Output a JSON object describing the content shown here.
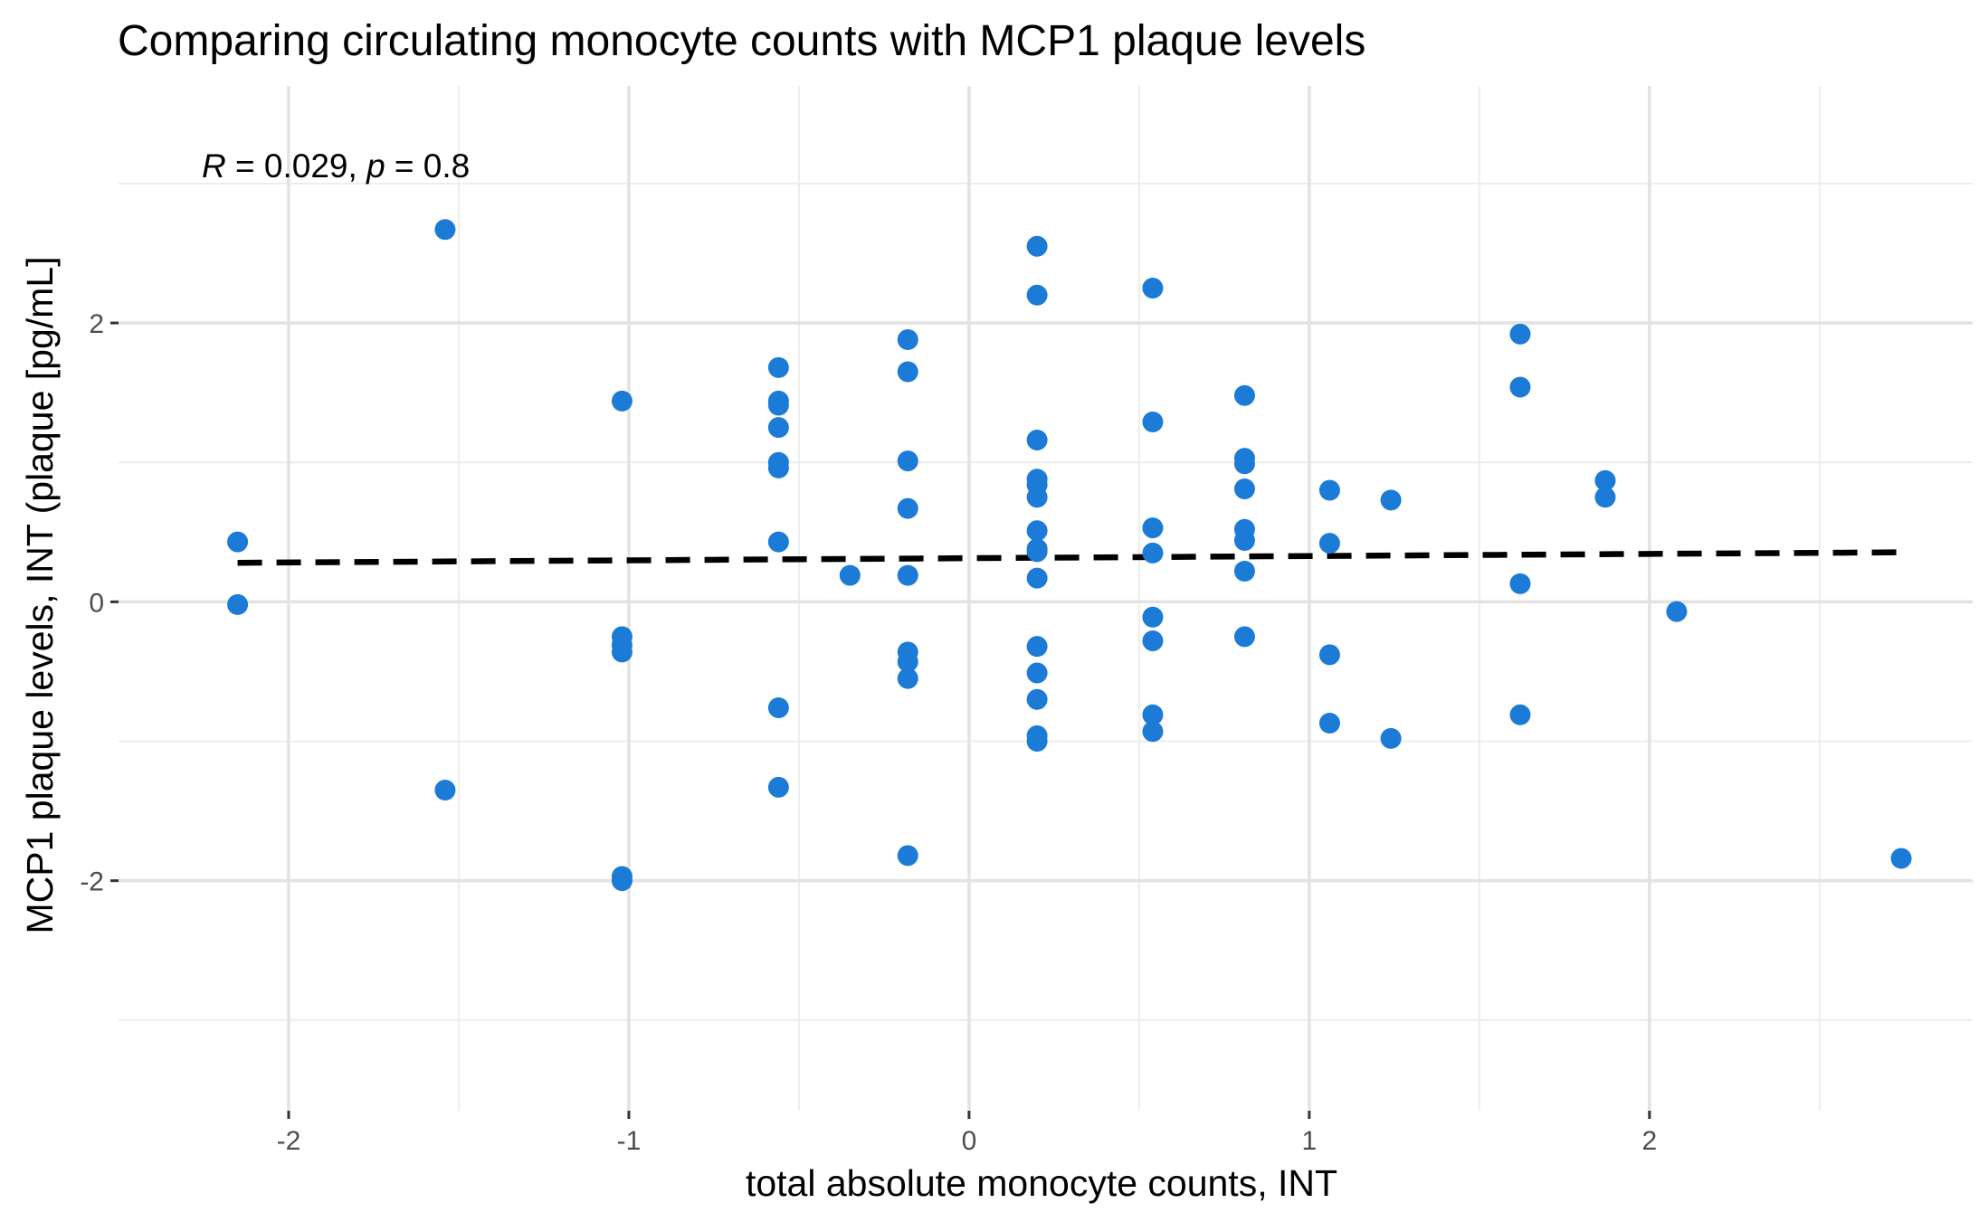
{
  "chart_data": {
    "type": "scatter",
    "title": "Comparing circulating monocyte counts with MCP1 plaque levels",
    "xlabel": "total absolute monocyte counts, INT",
    "ylabel": "MCP1 plaque levels, INT (plaque [pg/mL]",
    "xlim": [
      -2.5,
      2.95
    ],
    "ylim": [
      -3.65,
      3.7
    ],
    "x_ticks": [
      -2,
      -1,
      0,
      1,
      2
    ],
    "x_tick_labels": [
      "-2",
      "-1",
      "0",
      "1",
      "2"
    ],
    "y_ticks": [
      -2,
      0,
      2
    ],
    "y_tick_labels": [
      "-2",
      "0",
      "2"
    ],
    "x_minor_grid": [
      -1.5,
      -0.5,
      0.5,
      1.5,
      2.5
    ],
    "y_minor_grid": [
      -3,
      -1,
      1,
      3
    ],
    "grid": true,
    "point_color": "#1b7bd6",
    "annotation": {
      "r_symbol": "R",
      "r_value": " = 0.029, ",
      "p_symbol": "p",
      "p_value": " = 0.8"
    },
    "trend_line": {
      "x": [
        -2.15,
        2.74
      ],
      "y": [
        0.28,
        0.355
      ],
      "style": "dashed",
      "color": "#000000"
    },
    "points": [
      {
        "x": -2.15,
        "y": 0.43
      },
      {
        "x": -2.15,
        "y": -0.02
      },
      {
        "x": -1.54,
        "y": 2.67
      },
      {
        "x": -1.54,
        "y": -1.35
      },
      {
        "x": -1.02,
        "y": 1.44
      },
      {
        "x": -1.02,
        "y": -0.25
      },
      {
        "x": -1.02,
        "y": -0.31
      },
      {
        "x": -1.02,
        "y": -0.36
      },
      {
        "x": -1.02,
        "y": -1.97
      },
      {
        "x": -1.02,
        "y": -2.0
      },
      {
        "x": -0.56,
        "y": 1.68
      },
      {
        "x": -0.56,
        "y": 1.44
      },
      {
        "x": -0.56,
        "y": 1.41
      },
      {
        "x": -0.56,
        "y": 1.25
      },
      {
        "x": -0.56,
        "y": 1.0
      },
      {
        "x": -0.56,
        "y": 0.96
      },
      {
        "x": -0.56,
        "y": 0.43
      },
      {
        "x": -0.56,
        "y": -0.76
      },
      {
        "x": -0.56,
        "y": -1.33
      },
      {
        "x": -0.35,
        "y": 0.19
      },
      {
        "x": -0.18,
        "y": 1.88
      },
      {
        "x": -0.18,
        "y": 1.65
      },
      {
        "x": -0.18,
        "y": 1.01
      },
      {
        "x": -0.18,
        "y": 0.67
      },
      {
        "x": -0.18,
        "y": 0.19
      },
      {
        "x": -0.18,
        "y": -0.36
      },
      {
        "x": -0.18,
        "y": -0.43
      },
      {
        "x": -0.18,
        "y": -0.55
      },
      {
        "x": -0.18,
        "y": -1.82
      },
      {
        "x": 0.2,
        "y": 2.55
      },
      {
        "x": 0.2,
        "y": 2.2
      },
      {
        "x": 0.2,
        "y": 1.16
      },
      {
        "x": 0.2,
        "y": 0.88
      },
      {
        "x": 0.2,
        "y": 0.84
      },
      {
        "x": 0.2,
        "y": 0.75
      },
      {
        "x": 0.2,
        "y": 0.51
      },
      {
        "x": 0.2,
        "y": 0.38
      },
      {
        "x": 0.2,
        "y": 0.36
      },
      {
        "x": 0.2,
        "y": 0.17
      },
      {
        "x": 0.2,
        "y": -0.32
      },
      {
        "x": 0.2,
        "y": -0.51
      },
      {
        "x": 0.2,
        "y": -0.7
      },
      {
        "x": 0.2,
        "y": -0.96
      },
      {
        "x": 0.2,
        "y": -1.0
      },
      {
        "x": 0.54,
        "y": 2.25
      },
      {
        "x": 0.54,
        "y": 1.29
      },
      {
        "x": 0.54,
        "y": 0.53
      },
      {
        "x": 0.54,
        "y": 0.35
      },
      {
        "x": 0.54,
        "y": -0.11
      },
      {
        "x": 0.54,
        "y": -0.28
      },
      {
        "x": 0.54,
        "y": -0.81
      },
      {
        "x": 0.54,
        "y": -0.93
      },
      {
        "x": 0.81,
        "y": 1.48
      },
      {
        "x": 0.81,
        "y": 1.03
      },
      {
        "x": 0.81,
        "y": 0.99
      },
      {
        "x": 0.81,
        "y": 0.81
      },
      {
        "x": 0.81,
        "y": 0.52
      },
      {
        "x": 0.81,
        "y": 0.44
      },
      {
        "x": 0.81,
        "y": 0.22
      },
      {
        "x": 0.81,
        "y": -0.25
      },
      {
        "x": 1.06,
        "y": 0.8
      },
      {
        "x": 1.06,
        "y": 0.42
      },
      {
        "x": 1.06,
        "y": -0.38
      },
      {
        "x": 1.06,
        "y": -0.87
      },
      {
        "x": 1.24,
        "y": 0.73
      },
      {
        "x": 1.24,
        "y": -0.98
      },
      {
        "x": 1.62,
        "y": 1.92
      },
      {
        "x": 1.62,
        "y": 1.54
      },
      {
        "x": 1.62,
        "y": 0.13
      },
      {
        "x": 1.62,
        "y": -0.81
      },
      {
        "x": 1.87,
        "y": 0.87
      },
      {
        "x": 1.87,
        "y": 0.75
      },
      {
        "x": 2.08,
        "y": -0.07
      },
      {
        "x": 2.74,
        "y": -1.84
      }
    ]
  }
}
